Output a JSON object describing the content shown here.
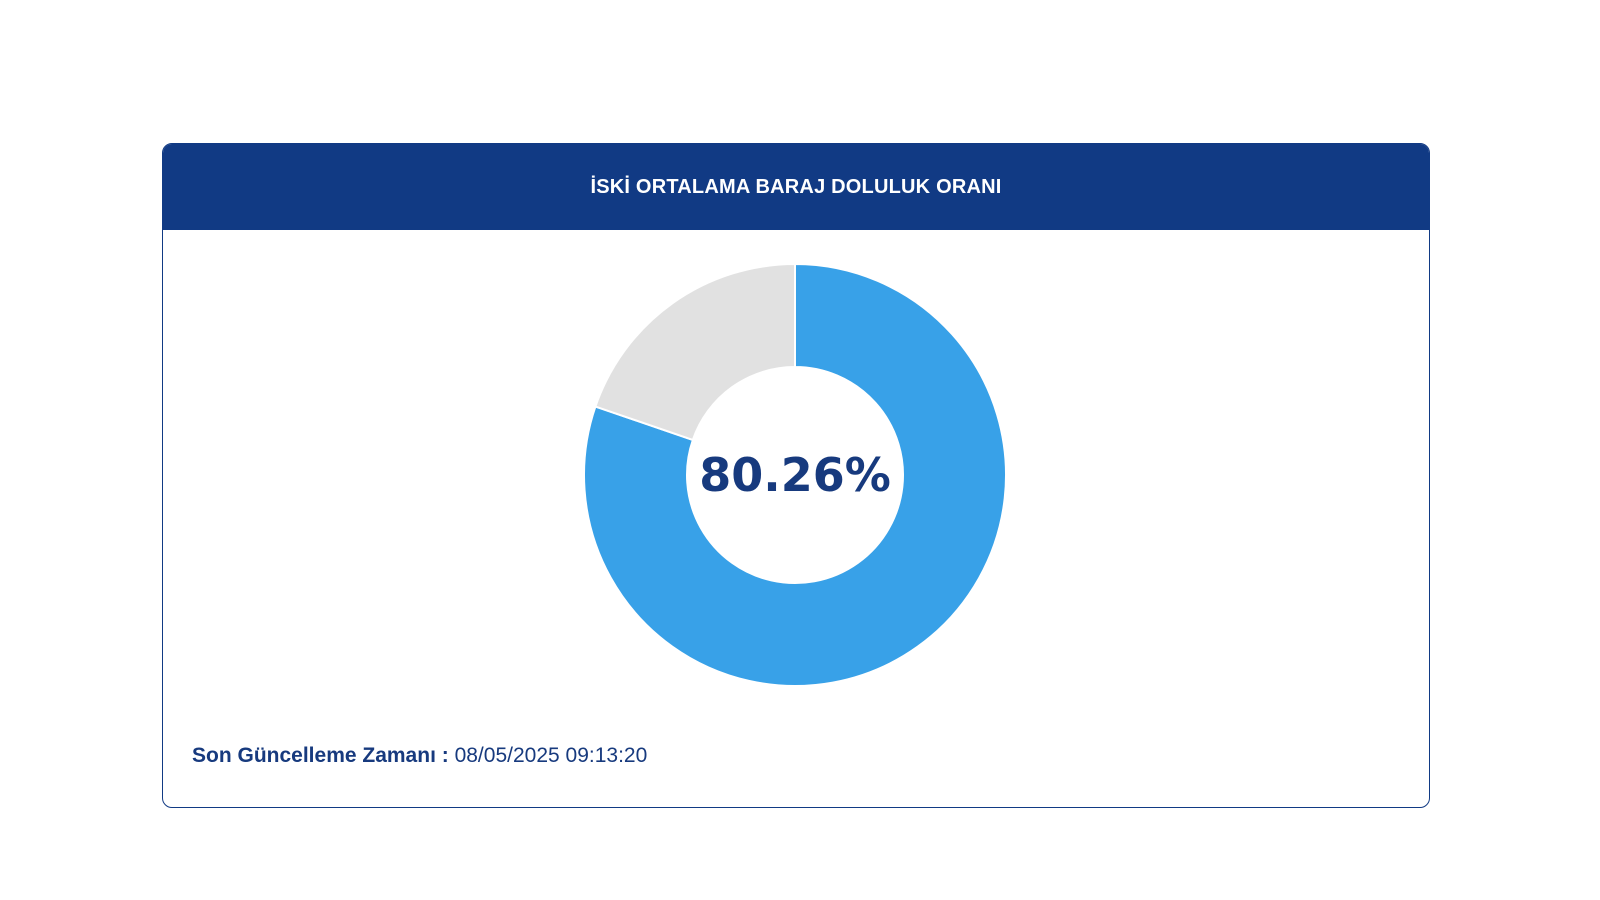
{
  "card": {
    "title": "İSKİ ORTALAMA BARAJ DOLULUK ORANI",
    "center_label": "80.26%",
    "footer_label": "Son Güncelleme Zamanı :",
    "footer_value": "08/05/2025 09:13:20"
  },
  "colors": {
    "header_bg": "#113a84",
    "filled": "#38a1e8",
    "empty": "#e1e1e1",
    "text": "#173a7e"
  },
  "chart_data": {
    "type": "pie",
    "donut": true,
    "values": [
      80.26,
      19.74
    ],
    "colors": [
      "#38a1e8",
      "#e1e1e1"
    ],
    "center_text": "80.26%"
  }
}
